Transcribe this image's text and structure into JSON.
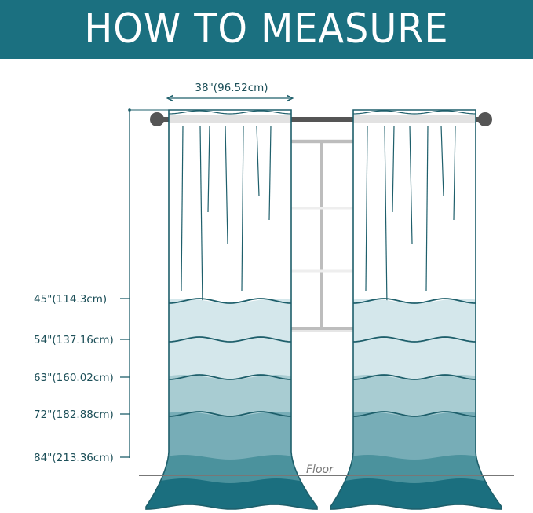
{
  "title": "HOW TO MEASURE",
  "width_label": "38\"(96.52cm)",
  "length_labels": [
    "45\"(114.3cm)",
    "54\"(137.16cm)",
    "63\"(160.02cm)",
    "72\"(182.88cm)",
    "84\"(213.36cm)"
  ],
  "floor_label": "Floor",
  "colors": {
    "accent": "#1b7080",
    "band_colors": [
      "#d4e7eb",
      "#d4e7eb",
      "#a8ccd2",
      "#77adb7",
      "#4b929d",
      "#1b6f7f"
    ],
    "outline": "#1e5f6b",
    "rod": "#555555",
    "window": "#bdbdbd"
  }
}
